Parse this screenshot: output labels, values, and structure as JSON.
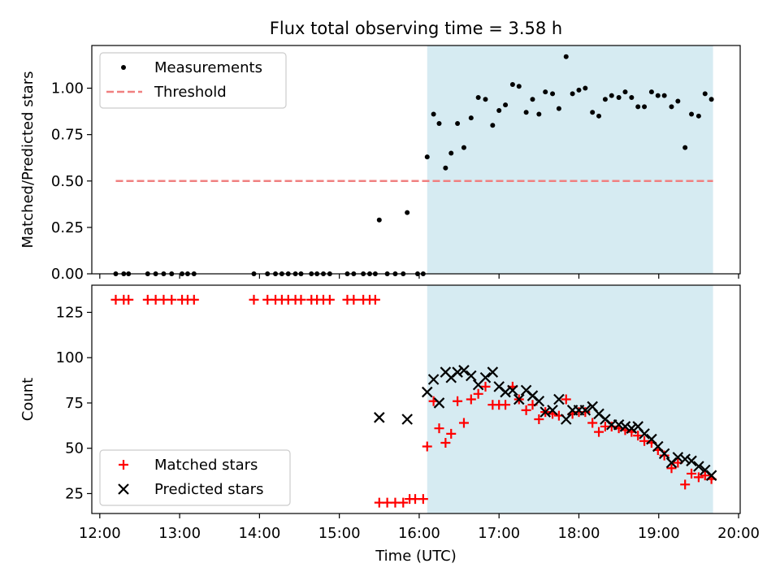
{
  "chart_data": {
    "type": "scatter",
    "title": "Flux total observing time = 3.58 h",
    "xlabel": "Time (UTC)",
    "x_unit": "hours UTC",
    "xlim": [
      11.9,
      20.02
    ],
    "x_ticks": [
      12,
      13,
      14,
      15,
      16,
      17,
      18,
      19,
      20
    ],
    "x_tick_labels": [
      "12:00",
      "13:00",
      "14:00",
      "15:00",
      "16:00",
      "17:00",
      "18:00",
      "19:00",
      "20:00"
    ],
    "shaded_span": [
      16.1,
      19.68
    ],
    "shaded_color": "#add8e6",
    "panels": [
      {
        "id": "ratio",
        "ylabel": "Matched/Predicted stars",
        "ylim": [
          0,
          1.23
        ],
        "y_ticks": [
          0,
          0.25,
          0.5,
          0.75,
          1.0
        ],
        "y_tick_labels": [
          "0.00",
          "0.25",
          "0.50",
          "0.75",
          "1.00"
        ],
        "legend": {
          "position": "upper left",
          "entries": [
            "Measurements",
            "Threshold"
          ]
        },
        "threshold": {
          "name": "Threshold",
          "value": 0.5,
          "x_range": [
            12.2,
            19.68
          ],
          "color": "#f08080",
          "style": "dashed"
        },
        "series": [
          {
            "name": "Measurements",
            "marker": "dot",
            "color": "#000000",
            "points": [
              [
                12.2,
                0
              ],
              [
                12.3,
                0
              ],
              [
                12.36,
                0
              ],
              [
                12.6,
                0
              ],
              [
                12.7,
                0
              ],
              [
                12.8,
                0
              ],
              [
                12.9,
                0
              ],
              [
                13.03,
                0
              ],
              [
                13.1,
                0
              ],
              [
                13.18,
                0
              ],
              [
                13.93,
                0
              ],
              [
                14.1,
                0
              ],
              [
                14.2,
                0
              ],
              [
                14.28,
                0
              ],
              [
                14.36,
                0
              ],
              [
                14.45,
                0
              ],
              [
                14.52,
                0
              ],
              [
                14.65,
                0
              ],
              [
                14.72,
                0
              ],
              [
                14.8,
                0
              ],
              [
                14.88,
                0
              ],
              [
                15.1,
                0
              ],
              [
                15.18,
                0
              ],
              [
                15.3,
                0
              ],
              [
                15.38,
                0
              ],
              [
                15.45,
                0
              ],
              [
                15.6,
                0
              ],
              [
                15.7,
                0
              ],
              [
                15.8,
                0
              ],
              [
                15.98,
                0
              ],
              [
                16.05,
                0
              ],
              [
                15.5,
                0.29
              ],
              [
                15.85,
                0.33
              ],
              [
                16.1,
                0.63
              ],
              [
                16.18,
                0.86
              ],
              [
                16.25,
                0.81
              ],
              [
                16.33,
                0.57
              ],
              [
                16.4,
                0.65
              ],
              [
                16.48,
                0.81
              ],
              [
                16.56,
                0.68
              ],
              [
                16.65,
                0.84
              ],
              [
                16.74,
                0.95
              ],
              [
                16.83,
                0.94
              ],
              [
                16.92,
                0.8
              ],
              [
                17.0,
                0.88
              ],
              [
                17.08,
                0.91
              ],
              [
                17.17,
                1.02
              ],
              [
                17.25,
                1.01
              ],
              [
                17.34,
                0.87
              ],
              [
                17.42,
                0.94
              ],
              [
                17.5,
                0.86
              ],
              [
                17.58,
                0.98
              ],
              [
                17.67,
                0.97
              ],
              [
                17.75,
                0.89
              ],
              [
                17.84,
                1.17
              ],
              [
                17.92,
                0.97
              ],
              [
                18.0,
                0.99
              ],
              [
                18.08,
                1.0
              ],
              [
                18.17,
                0.87
              ],
              [
                18.25,
                0.85
              ],
              [
                18.33,
                0.94
              ],
              [
                18.41,
                0.96
              ],
              [
                18.5,
                0.95
              ],
              [
                18.58,
                0.98
              ],
              [
                18.66,
                0.95
              ],
              [
                18.74,
                0.9
              ],
              [
                18.82,
                0.9
              ],
              [
                18.91,
                0.98
              ],
              [
                18.99,
                0.96
              ],
              [
                19.07,
                0.96
              ],
              [
                19.16,
                0.9
              ],
              [
                19.24,
                0.93
              ],
              [
                19.33,
                0.68
              ],
              [
                19.41,
                0.86
              ],
              [
                19.5,
                0.85
              ],
              [
                19.58,
                0.97
              ],
              [
                19.66,
                0.94
              ]
            ]
          }
        ]
      },
      {
        "id": "counts",
        "ylabel": "Count",
        "ylim": [
          14,
          140
        ],
        "y_ticks": [
          25,
          50,
          75,
          100,
          125
        ],
        "y_tick_labels": [
          "25",
          "50",
          "75",
          "100",
          "125"
        ],
        "legend": {
          "position": "lower left",
          "entries": [
            "Matched stars",
            "Predicted stars"
          ]
        },
        "series": [
          {
            "name": "Matched stars",
            "marker": "plus",
            "color": "#ff0000",
            "points": [
              [
                12.2,
                132
              ],
              [
                12.3,
                132
              ],
              [
                12.36,
                132
              ],
              [
                12.6,
                132
              ],
              [
                12.7,
                132
              ],
              [
                12.8,
                132
              ],
              [
                12.9,
                132
              ],
              [
                13.03,
                132
              ],
              [
                13.1,
                132
              ],
              [
                13.18,
                132
              ],
              [
                13.93,
                132
              ],
              [
                14.1,
                132
              ],
              [
                14.2,
                132
              ],
              [
                14.28,
                132
              ],
              [
                14.36,
                132
              ],
              [
                14.45,
                132
              ],
              [
                14.52,
                132
              ],
              [
                14.65,
                132
              ],
              [
                14.72,
                132
              ],
              [
                14.8,
                132
              ],
              [
                14.88,
                132
              ],
              [
                15.1,
                132
              ],
              [
                15.18,
                132
              ],
              [
                15.3,
                132
              ],
              [
                15.38,
                132
              ],
              [
                15.45,
                132
              ],
              [
                15.5,
                20
              ],
              [
                15.6,
                20
              ],
              [
                15.7,
                20
              ],
              [
                15.8,
                20
              ],
              [
                15.88,
                22
              ],
              [
                15.95,
                22
              ],
              [
                16.05,
                22
              ],
              [
                16.1,
                51
              ],
              [
                16.18,
                76
              ],
              [
                16.25,
                61
              ],
              [
                16.33,
                53
              ],
              [
                16.4,
                58
              ],
              [
                16.48,
                76
              ],
              [
                16.56,
                64
              ],
              [
                16.65,
                77
              ],
              [
                16.74,
                80
              ],
              [
                16.83,
                84
              ],
              [
                16.92,
                74
              ],
              [
                17.0,
                74
              ],
              [
                17.08,
                74
              ],
              [
                17.17,
                84
              ],
              [
                17.25,
                77
              ],
              [
                17.34,
                71
              ],
              [
                17.42,
                74
              ],
              [
                17.5,
                66
              ],
              [
                17.58,
                70
              ],
              [
                17.67,
                69
              ],
              [
                17.75,
                68
              ],
              [
                17.84,
                77
              ],
              [
                17.92,
                69
              ],
              [
                18.0,
                70
              ],
              [
                18.08,
                70
              ],
              [
                18.17,
                64
              ],
              [
                18.25,
                59
              ],
              [
                18.33,
                62
              ],
              [
                18.41,
                62
              ],
              [
                18.5,
                61
              ],
              [
                18.58,
                60
              ],
              [
                18.66,
                59
              ],
              [
                18.74,
                57
              ],
              [
                18.82,
                54
              ],
              [
                18.91,
                53
              ],
              [
                18.99,
                49
              ],
              [
                19.07,
                46
              ],
              [
                19.16,
                39
              ],
              [
                19.24,
                42
              ],
              [
                19.33,
                30
              ],
              [
                19.41,
                36
              ],
              [
                19.5,
                34
              ],
              [
                19.58,
                35
              ],
              [
                19.66,
                33
              ]
            ]
          },
          {
            "name": "Predicted stars",
            "marker": "x",
            "color": "#000000",
            "points": [
              [
                15.5,
                67
              ],
              [
                15.85,
                66
              ],
              [
                16.1,
                81
              ],
              [
                16.18,
                88
              ],
              [
                16.25,
                75
              ],
              [
                16.33,
                92
              ],
              [
                16.4,
                89
              ],
              [
                16.48,
                92
              ],
              [
                16.56,
                93
              ],
              [
                16.65,
                90
              ],
              [
                16.74,
                85
              ],
              [
                16.83,
                89
              ],
              [
                16.92,
                92
              ],
              [
                17.0,
                84
              ],
              [
                17.08,
                81
              ],
              [
                17.17,
                82
              ],
              [
                17.25,
                77
              ],
              [
                17.34,
                82
              ],
              [
                17.42,
                79
              ],
              [
                17.5,
                76
              ],
              [
                17.58,
                70
              ],
              [
                17.67,
                71
              ],
              [
                17.75,
                77
              ],
              [
                17.84,
                66
              ],
              [
                17.92,
                71
              ],
              [
                18.0,
                71
              ],
              [
                18.08,
                71
              ],
              [
                18.17,
                73
              ],
              [
                18.25,
                69
              ],
              [
                18.33,
                66
              ],
              [
                18.41,
                63
              ],
              [
                18.5,
                63
              ],
              [
                18.58,
                62
              ],
              [
                18.66,
                61
              ],
              [
                18.74,
                62
              ],
              [
                18.82,
                58
              ],
              [
                18.91,
                55
              ],
              [
                18.99,
                51
              ],
              [
                19.07,
                47
              ],
              [
                19.16,
                42
              ],
              [
                19.24,
                45
              ],
              [
                19.33,
                44
              ],
              [
                19.41,
                43
              ],
              [
                19.5,
                40
              ],
              [
                19.58,
                38
              ],
              [
                19.66,
                35
              ]
            ]
          }
        ]
      }
    ]
  }
}
